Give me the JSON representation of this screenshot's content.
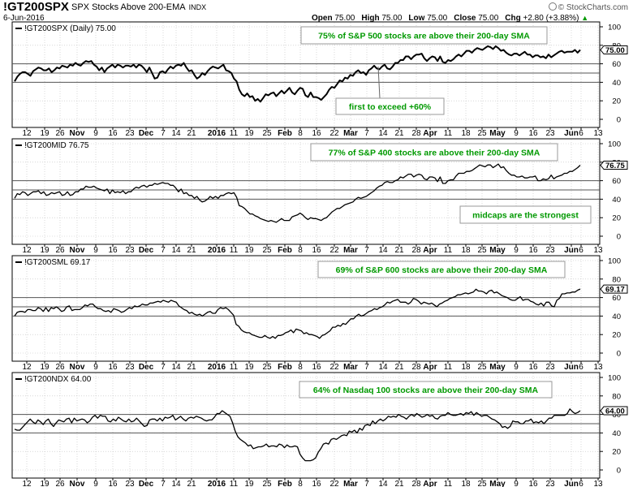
{
  "header": {
    "symbol": "!GT200SPX",
    "name": "SPX Stocks Above 200-EMA",
    "exchange": "INDX",
    "date": "6-Jun-2016",
    "open_label": "Open",
    "open": "75.00",
    "high_label": "High",
    "high": "75.00",
    "low_label": "Low",
    "low": "75.00",
    "close_label": "Close",
    "close": "75.00",
    "chg_label": "Chg",
    "chg": "+2.80 (+3.88%)",
    "chg_arrow": "▲",
    "credit": "© StockCharts.com"
  },
  "colors": {
    "line": "#000000",
    "grid": "#bfbfbf",
    "ref_line": "#555555",
    "annotation_text": "#009900",
    "annotation_border": "#999999"
  },
  "x_axis": {
    "tick_labels": [
      "12",
      "19",
      "26",
      "Nov",
      "9",
      "16",
      "23",
      "Dec",
      "7",
      "14",
      "21",
      "2016",
      "11",
      "19",
      "25",
      "Feb",
      "8",
      "16",
      "22",
      "Mar",
      "7",
      "14",
      "21",
      "28",
      "Apr",
      "11",
      "18",
      "25",
      "May",
      "9",
      "16",
      "23",
      "Jun",
      "6",
      "13"
    ],
    "bold_labels": [
      "Nov",
      "Dec",
      "2016",
      "Feb",
      "Mar",
      "Apr",
      "May",
      "Jun"
    ]
  },
  "chart_data": [
    {
      "type": "line",
      "label": "!GT200SPX (Daily) 75.00",
      "last_value": "75.00",
      "ylim": [
        0,
        100
      ],
      "yticks": [
        "0",
        "20",
        "40",
        "60",
        "80",
        "100"
      ],
      "reference_lines": [
        40,
        50,
        60
      ],
      "annotations": [
        {
          "text": "75% of S&P 500 stocks are above their 200-day SMA"
        },
        {
          "text": "first to exceed +60%"
        }
      ],
      "values": [
        41,
        46,
        49,
        51,
        51,
        49,
        47,
        52,
        54,
        56,
        55,
        53,
        53,
        55,
        51,
        53,
        56,
        55,
        58,
        57,
        56,
        59,
        58,
        61,
        59,
        58,
        61,
        63,
        62,
        63,
        59,
        57,
        53,
        56,
        51,
        55,
        57,
        59,
        56,
        59,
        58,
        56,
        58,
        58,
        57,
        59,
        56,
        59,
        58,
        55,
        51,
        56,
        50,
        44,
        45,
        51,
        52,
        50,
        54,
        57,
        55,
        58,
        59,
        58,
        61,
        56,
        52,
        53,
        48,
        44,
        46,
        50,
        48,
        52,
        55,
        57,
        56,
        55,
        57,
        59,
        53,
        52,
        50,
        44,
        41,
        32,
        27,
        25,
        28,
        24,
        25,
        20,
        22,
        19,
        23,
        27,
        26,
        28,
        29,
        25,
        28,
        31,
        28,
        31,
        34,
        29,
        27,
        31,
        34,
        33,
        26,
        24,
        29,
        24,
        24,
        23,
        21,
        24,
        27,
        32,
        35,
        34,
        38,
        42,
        41,
        45,
        44,
        48,
        47,
        51,
        53,
        50,
        51,
        48,
        53,
        55,
        58,
        55,
        54,
        57,
        59,
        55,
        54,
        57,
        61,
        61,
        64,
        64,
        68,
        68,
        65,
        68,
        70,
        70,
        71,
        66,
        63,
        66,
        68,
        67,
        63,
        68,
        62,
        61,
        64,
        63,
        65,
        68,
        70,
        68,
        71,
        74,
        74,
        72,
        75,
        77,
        76,
        75,
        77,
        79,
        78,
        76,
        79,
        77,
        74,
        75,
        72,
        70,
        69,
        71,
        71,
        69,
        71,
        73,
        70,
        70,
        67,
        69,
        69,
        67,
        68,
        66,
        70,
        67,
        69,
        71,
        73,
        74,
        72,
        73,
        73,
        73,
        75,
        72,
        75
      ]
    },
    {
      "type": "line",
      "label": "!GT200MID 76.75",
      "last_value": "76.75",
      "ylim": [
        0,
        100
      ],
      "yticks": [
        "0",
        "20",
        "40",
        "60",
        "80",
        "100"
      ],
      "reference_lines": [
        40,
        50,
        60
      ],
      "annotations": [
        {
          "text": "77% of S&P 400 stocks are above their 200-day SMA"
        },
        {
          "text": "midcaps are the strongest"
        }
      ],
      "values": [
        41,
        46,
        45,
        48,
        47,
        44,
        46,
        48,
        48,
        49,
        46,
        48,
        44,
        45,
        47,
        46,
        47,
        48,
        44,
        45,
        48,
        44,
        45,
        48,
        48,
        51,
        51,
        54,
        53,
        53,
        54,
        52,
        51,
        50,
        49,
        51,
        46,
        50,
        47,
        48,
        47,
        49,
        46,
        48,
        48,
        51,
        53,
        52,
        54,
        55,
        53,
        55,
        55,
        57,
        56,
        57,
        58,
        57,
        57,
        55,
        55,
        52,
        48,
        51,
        46,
        47,
        44,
        44,
        41,
        43,
        39,
        37,
        38,
        40,
        43,
        41,
        43,
        41,
        44,
        44,
        46,
        47,
        46,
        47,
        42,
        33,
        32,
        30,
        27,
        24,
        24,
        22,
        21,
        19,
        18,
        17,
        16,
        17,
        16,
        15,
        17,
        19,
        17,
        17,
        17,
        21,
        22,
        23,
        25,
        23,
        20,
        18,
        20,
        19,
        19,
        18,
        17,
        19,
        20,
        23,
        26,
        28,
        30,
        30,
        32,
        34,
        35,
        36,
        37,
        40,
        42,
        41,
        42,
        43,
        45,
        47,
        49,
        52,
        54,
        55,
        58,
        59,
        58,
        58,
        60,
        61,
        64,
        63,
        65,
        67,
        67,
        64,
        66,
        67,
        66,
        62,
        61,
        64,
        64,
        63,
        59,
        64,
        57,
        57,
        60,
        61,
        61,
        65,
        68,
        68,
        68,
        70,
        70,
        71,
        73,
        75,
        77,
        76,
        75,
        77,
        77,
        74,
        76,
        78,
        74,
        75,
        71,
        68,
        66,
        66,
        64,
        64,
        65,
        63,
        63,
        64,
        64,
        65,
        60,
        60,
        62,
        61,
        62,
        66,
        62,
        64,
        65,
        66,
        68,
        68,
        70,
        70,
        72,
        74,
        76.75
      ]
    },
    {
      "type": "line",
      "label": "!GT200SML 69.17",
      "last_value": "69.17",
      "ylim": [
        0,
        100
      ],
      "yticks": [
        "0",
        "20",
        "40",
        "60",
        "80",
        "100"
      ],
      "reference_lines": [
        40,
        50,
        60
      ],
      "annotations": [
        {
          "text": "69% of S&P 600 stocks are above their 200-day SMA"
        }
      ],
      "values": [
        40,
        44,
        45,
        45,
        44,
        47,
        47,
        46,
        46,
        49,
        48,
        45,
        49,
        45,
        49,
        48,
        50,
        48,
        45,
        46,
        50,
        51,
        46,
        47,
        47,
        47,
        49,
        52,
        51,
        53,
        53,
        50,
        48,
        48,
        46,
        45,
        46,
        44,
        48,
        47,
        46,
        44,
        45,
        47,
        49,
        48,
        51,
        50,
        51,
        53,
        52,
        52,
        54,
        54,
        55,
        56,
        55,
        57,
        56,
        55,
        57,
        56,
        55,
        51,
        49,
        47,
        46,
        43,
        44,
        42,
        41,
        42,
        40,
        42,
        44,
        45,
        43,
        43,
        47,
        49,
        48,
        49,
        47,
        44,
        41,
        31,
        29,
        25,
        23,
        22,
        22,
        20,
        19,
        18,
        17,
        17,
        19,
        17,
        16,
        18,
        16,
        19,
        19,
        20,
        22,
        23,
        25,
        22,
        26,
        25,
        24,
        21,
        22,
        20,
        20,
        19,
        18,
        16,
        19,
        20,
        22,
        24,
        28,
        28,
        30,
        29,
        32,
        31,
        34,
        37,
        37,
        40,
        42,
        40,
        41,
        43,
        45,
        46,
        48,
        47,
        49,
        50,
        52,
        55,
        54,
        56,
        57,
        58,
        55,
        55,
        55,
        53,
        55,
        59,
        58,
        56,
        53,
        55,
        54,
        53,
        54,
        52,
        50,
        53,
        54,
        56,
        57,
        59,
        60,
        61,
        63,
        63,
        64,
        65,
        64,
        65,
        66,
        69,
        67,
        67,
        66,
        64,
        67,
        68,
        65,
        66,
        64,
        62,
        61,
        60,
        58,
        57,
        57,
        59,
        61,
        57,
        58,
        58,
        56,
        55,
        53,
        52,
        54,
        51,
        55,
        55,
        51,
        50,
        57,
        59,
        64,
        64,
        65,
        65,
        66,
        66,
        68,
        69.17
      ]
    },
    {
      "type": "line",
      "label": "!GT200NDX 64.00",
      "last_value": "64.00",
      "ylim": [
        0,
        100
      ],
      "yticks": [
        "0",
        "20",
        "40",
        "60",
        "80",
        "100"
      ],
      "reference_lines": [
        40,
        50,
        60
      ],
      "annotations": [
        {
          "text": "64% of Nasdaq 100 stocks are above their 200-day SMA"
        }
      ],
      "values": [
        44,
        43,
        43,
        46,
        49,
        52,
        55,
        52,
        50,
        54,
        52,
        49,
        53,
        55,
        50,
        47,
        51,
        54,
        53,
        52,
        55,
        56,
        51,
        56,
        53,
        54,
        55,
        54,
        51,
        53,
        57,
        59,
        56,
        59,
        58,
        58,
        53,
        52,
        55,
        53,
        57,
        55,
        53,
        52,
        55,
        52,
        53,
        56,
        53,
        50,
        47,
        48,
        54,
        55,
        55,
        53,
        56,
        53,
        57,
        56,
        57,
        59,
        54,
        56,
        58,
        55,
        53,
        56,
        57,
        56,
        58,
        57,
        56,
        54,
        53,
        54,
        54,
        57,
        61,
        61,
        64,
        62,
        60,
        58,
        51,
        42,
        36,
        33,
        31,
        29,
        26,
        27,
        23,
        24,
        25,
        25,
        26,
        28,
        25,
        26,
        26,
        25,
        28,
        27,
        24,
        27,
        25,
        25,
        26,
        25,
        17,
        13,
        10,
        10,
        10,
        11,
        13,
        19,
        23,
        28,
        29,
        28,
        33,
        34,
        33,
        35,
        37,
        38,
        37,
        42,
        41,
        43,
        40,
        45,
        43,
        48,
        49,
        48,
        53,
        50,
        53,
        55,
        53,
        55,
        58,
        57,
        58,
        57,
        60,
        58,
        57,
        55,
        58,
        60,
        58,
        61,
        59,
        57,
        58,
        60,
        58,
        59,
        56,
        55,
        58,
        59,
        59,
        62,
        60,
        59,
        59,
        60,
        61,
        59,
        62,
        61,
        63,
        59,
        62,
        60,
        58,
        59,
        59,
        57,
        55,
        54,
        52,
        50,
        46,
        47,
        45,
        47,
        53,
        52,
        52,
        50,
        50,
        53,
        53,
        55,
        51,
        52,
        51,
        53,
        50,
        53,
        56,
        56,
        59,
        59,
        59,
        59,
        59,
        61,
        66,
        63,
        61,
        62,
        64
      ]
    }
  ]
}
